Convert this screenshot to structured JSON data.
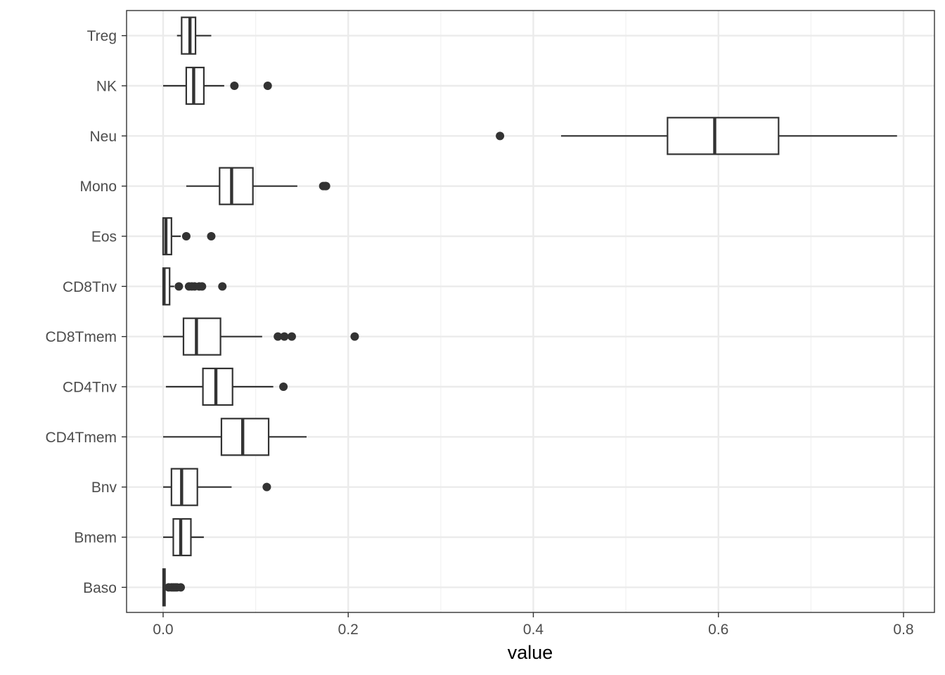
{
  "chart_data": {
    "type": "boxplot",
    "orientation": "horizontal",
    "xlabel": "value",
    "ylabel": "",
    "xlim": [
      -0.0395,
      0.83
    ],
    "x_ticks": [
      0.0,
      0.2,
      0.4,
      0.6,
      0.8
    ],
    "x_tick_labels": [
      "0.0",
      "0.2",
      "0.4",
      "0.6",
      "0.8"
    ],
    "grid": true,
    "categories": [
      "Treg",
      "NK",
      "Neu",
      "Mono",
      "Eos",
      "CD8Tnv",
      "CD8Tmem",
      "CD4Tnv",
      "CD4Tmem",
      "Bnv",
      "Bmem",
      "Baso"
    ],
    "boxes": [
      {
        "name": "Treg",
        "whisker_low": 0.015,
        "q1": 0.02,
        "median": 0.029,
        "q3": 0.035,
        "whisker_high": 0.052,
        "outliers": []
      },
      {
        "name": "NK",
        "whisker_low": 0.0,
        "q1": 0.025,
        "median": 0.033,
        "q3": 0.044,
        "whisker_high": 0.066,
        "outliers": [
          0.077,
          0.113
        ]
      },
      {
        "name": "Neu",
        "whisker_low": 0.43,
        "q1": 0.545,
        "median": 0.596,
        "q3": 0.665,
        "whisker_high": 0.793,
        "outliers": [
          0.364
        ]
      },
      {
        "name": "Mono",
        "whisker_low": 0.025,
        "q1": 0.061,
        "median": 0.074,
        "q3": 0.097,
        "whisker_high": 0.145,
        "outliers": [
          0.173,
          0.175,
          0.176
        ]
      },
      {
        "name": "Eos",
        "whisker_low": 0.0,
        "q1": 0.0,
        "median": 0.003,
        "q3": 0.009,
        "whisker_high": 0.019,
        "outliers": [
          0.025,
          0.052
        ]
      },
      {
        "name": "CD8Tnv",
        "whisker_low": 0.0,
        "q1": 0.0,
        "median": 0.001,
        "q3": 0.007,
        "whisker_high": 0.012,
        "outliers": [
          0.017,
          0.028,
          0.031,
          0.034,
          0.039,
          0.042,
          0.064
        ]
      },
      {
        "name": "CD8Tmem",
        "whisker_low": 0.0,
        "q1": 0.022,
        "median": 0.036,
        "q3": 0.062,
        "whisker_high": 0.107,
        "outliers": [
          0.124,
          0.131,
          0.139,
          0.207
        ]
      },
      {
        "name": "CD4Tnv",
        "whisker_low": 0.003,
        "q1": 0.043,
        "median": 0.057,
        "q3": 0.075,
        "whisker_high": 0.119,
        "outliers": [
          0.13
        ]
      },
      {
        "name": "CD4Tmem",
        "whisker_low": 0.0,
        "q1": 0.063,
        "median": 0.086,
        "q3": 0.114,
        "whisker_high": 0.155,
        "outliers": []
      },
      {
        "name": "Bnv",
        "whisker_low": 0.0,
        "q1": 0.009,
        "median": 0.02,
        "q3": 0.037,
        "whisker_high": 0.074,
        "outliers": [
          0.112
        ]
      },
      {
        "name": "Bmem",
        "whisker_low": 0.0,
        "q1": 0.011,
        "median": 0.019,
        "q3": 0.03,
        "whisker_high": 0.044,
        "outliers": []
      },
      {
        "name": "Baso",
        "whisker_low": 0.0,
        "q1": 0.0,
        "median": 0.001,
        "q3": 0.002,
        "whisker_high": 0.003,
        "outliers": [
          0.006,
          0.009,
          0.011,
          0.013,
          0.015,
          0.019
        ]
      }
    ],
    "colors": {
      "panel_border": "#333333",
      "grid_major": "#ebebeb",
      "grid_minor": "#f2f2f2",
      "box_stroke": "#333333",
      "box_fill": "#ffffff",
      "outlier": "#333333",
      "tick_text": "#4d4d4d",
      "axis_title": "#000000"
    }
  }
}
